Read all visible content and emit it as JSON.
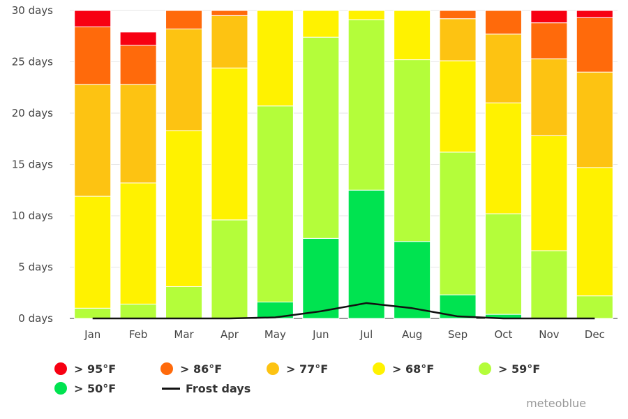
{
  "chart_data": {
    "type": "bar",
    "stacked": true,
    "categories": [
      "Jan",
      "Feb",
      "Mar",
      "Apr",
      "May",
      "Jun",
      "Jul",
      "Aug",
      "Sep",
      "Oct",
      "Nov",
      "Dec"
    ],
    "y_ticks": [
      "0 days",
      "5 days",
      "10 days",
      "15 days",
      "20 days",
      "25 days",
      "30 days"
    ],
    "ylim": [
      0,
      30
    ],
    "grid": true,
    "legend_position": "bottom",
    "series": [
      {
        "name": "> 50°F",
        "color": "#00e350",
        "values": [
          0,
          0,
          0,
          0,
          1.6,
          7.8,
          12.5,
          7.5,
          2.3,
          0.4,
          0,
          0
        ]
      },
      {
        "name": "> 59°F",
        "color": "#b4fd3a",
        "values": [
          1.0,
          1.4,
          3.1,
          9.6,
          19.1,
          19.6,
          16.6,
          17.7,
          13.9,
          9.8,
          6.6,
          2.2
        ]
      },
      {
        "name": "> 68°F",
        "color": "#fff200",
        "values": [
          10.9,
          11.8,
          15.2,
          14.8,
          9.3,
          2.6,
          0.9,
          4.8,
          8.9,
          10.8,
          11.2,
          12.5
        ]
      },
      {
        "name": "> 77°F",
        "color": "#fdc312",
        "values": [
          10.9,
          9.6,
          9.9,
          5.1,
          0,
          0,
          0,
          0,
          4.1,
          6.7,
          7.5,
          9.3
        ]
      },
      {
        "name": "> 86°F",
        "color": "#ff6a0b",
        "values": [
          5.6,
          3.8,
          1.8,
          0.5,
          0,
          0,
          0,
          0,
          0.8,
          2.3,
          3.5,
          5.3
        ]
      },
      {
        "name": "> 95°F",
        "color": "#f70012",
        "values": [
          1.6,
          1.3,
          0,
          0,
          0,
          0,
          0,
          0,
          0,
          0,
          1.2,
          0.7
        ]
      }
    ],
    "line_series": {
      "name": "Frost days",
      "color": "#111111",
      "values": [
        0,
        0,
        0,
        0,
        0.1,
        0.7,
        1.5,
        1.0,
        0.2,
        0,
        0,
        0
      ]
    }
  },
  "legend": {
    "items": [
      {
        "label": "> 95°F",
        "color": "#f70012"
      },
      {
        "label": "> 86°F",
        "color": "#ff6a0b"
      },
      {
        "label": "> 77°F",
        "color": "#fdc312"
      },
      {
        "label": "> 68°F",
        "color": "#fff200"
      },
      {
        "label": "> 59°F",
        "color": "#b4fd3a"
      },
      {
        "label": "> 50°F",
        "color": "#00e350"
      }
    ],
    "line_label": "Frost days"
  },
  "credit": "meteoblue"
}
